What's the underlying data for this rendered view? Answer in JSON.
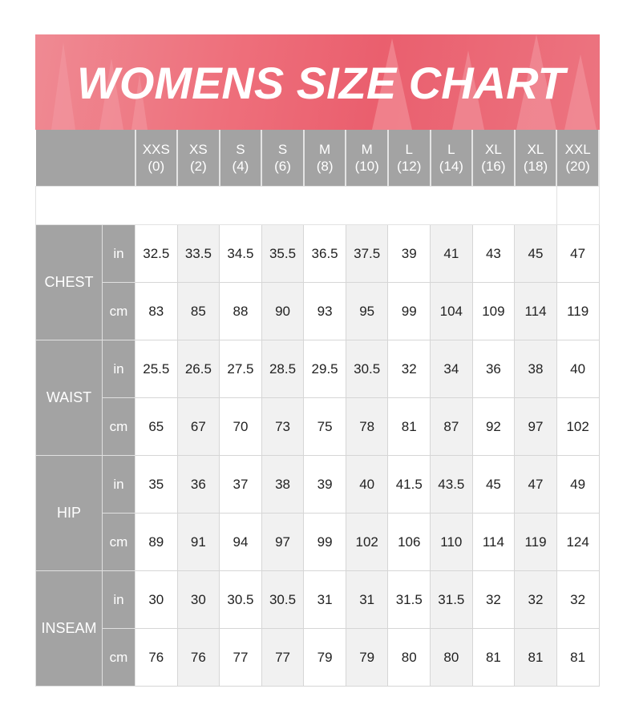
{
  "chart_data": {
    "type": "table",
    "title": "WOMENS SIZE CHART",
    "colors": {
      "banner": "#ec6c79",
      "header": "#a3a3a3",
      "alt_column": "#f1f1f1"
    },
    "columns": [
      {
        "size": "XXS",
        "number": "(0)"
      },
      {
        "size": "XS",
        "number": "(2)"
      },
      {
        "size": "S",
        "number": "(4)"
      },
      {
        "size": "S",
        "number": "(6)"
      },
      {
        "size": "M",
        "number": "(8)"
      },
      {
        "size": "M",
        "number": "(10)"
      },
      {
        "size": "L",
        "number": "(12)"
      },
      {
        "size": "L",
        "number": "(14)"
      },
      {
        "size": "XL",
        "number": "(16)"
      },
      {
        "size": "XL",
        "number": "(18)"
      },
      {
        "size": "XXL",
        "number": "(20)"
      }
    ],
    "measurements": [
      {
        "name": "CHEST",
        "rows": [
          {
            "unit": "in",
            "values": [
              "32.5",
              "33.5",
              "34.5",
              "35.5",
              "36.5",
              "37.5",
              "39",
              "41",
              "43",
              "45",
              "47"
            ]
          },
          {
            "unit": "cm",
            "values": [
              "83",
              "85",
              "88",
              "90",
              "93",
              "95",
              "99",
              "104",
              "109",
              "114",
              "119"
            ]
          }
        ]
      },
      {
        "name": "WAIST",
        "rows": [
          {
            "unit": "in",
            "values": [
              "25.5",
              "26.5",
              "27.5",
              "28.5",
              "29.5",
              "30.5",
              "32",
              "34",
              "36",
              "38",
              "40"
            ]
          },
          {
            "unit": "cm",
            "values": [
              "65",
              "67",
              "70",
              "73",
              "75",
              "78",
              "81",
              "87",
              "92",
              "97",
              "102"
            ]
          }
        ]
      },
      {
        "name": "HIP",
        "rows": [
          {
            "unit": "in",
            "values": [
              "35",
              "36",
              "37",
              "38",
              "39",
              "40",
              "41.5",
              "43.5",
              "45",
              "47",
              "49"
            ]
          },
          {
            "unit": "cm",
            "values": [
              "89",
              "91",
              "94",
              "97",
              "99",
              "102",
              "106",
              "110",
              "114",
              "119",
              "124"
            ]
          }
        ]
      },
      {
        "name": "INSEAM",
        "rows": [
          {
            "unit": "in",
            "values": [
              "30",
              "30",
              "30.5",
              "30.5",
              "31",
              "31",
              "31.5",
              "31.5",
              "32",
              "32",
              "32"
            ]
          },
          {
            "unit": "cm",
            "values": [
              "76",
              "76",
              "77",
              "77",
              "79",
              "79",
              "80",
              "80",
              "81",
              "81",
              "81"
            ]
          }
        ]
      }
    ]
  }
}
